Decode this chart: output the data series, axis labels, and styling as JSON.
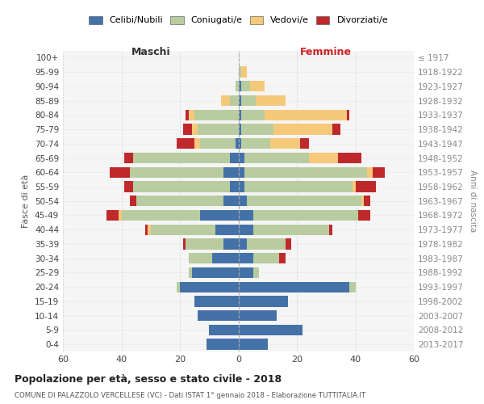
{
  "age_groups": [
    "100+",
    "95-99",
    "90-94",
    "85-89",
    "80-84",
    "75-79",
    "70-74",
    "65-69",
    "60-64",
    "55-59",
    "50-54",
    "45-49",
    "40-44",
    "35-39",
    "30-34",
    "25-29",
    "20-24",
    "15-19",
    "10-14",
    "5-9",
    "0-4"
  ],
  "birth_years": [
    "≤ 1917",
    "1918-1922",
    "1923-1927",
    "1928-1932",
    "1933-1937",
    "1938-1942",
    "1943-1947",
    "1948-1952",
    "1953-1957",
    "1958-1962",
    "1963-1967",
    "1968-1972",
    "1973-1977",
    "1978-1982",
    "1983-1987",
    "1988-1992",
    "1993-1997",
    "1998-2002",
    "2003-2007",
    "2008-2012",
    "2013-2017"
  ],
  "males": {
    "celibi": [
      0,
      0,
      0,
      0,
      0,
      0,
      1,
      3,
      5,
      3,
      5,
      13,
      8,
      5,
      9,
      16,
      20,
      15,
      14,
      10,
      11
    ],
    "coniugati": [
      0,
      0,
      1,
      3,
      15,
      14,
      12,
      33,
      32,
      33,
      30,
      27,
      22,
      13,
      8,
      1,
      1,
      0,
      0,
      0,
      0
    ],
    "vedovi": [
      0,
      0,
      0,
      3,
      2,
      2,
      2,
      0,
      0,
      0,
      0,
      1,
      1,
      0,
      0,
      0,
      0,
      0,
      0,
      0,
      0
    ],
    "divorziati": [
      0,
      0,
      0,
      0,
      1,
      3,
      6,
      3,
      7,
      3,
      2,
      4,
      1,
      1,
      0,
      0,
      0,
      0,
      0,
      0,
      0
    ]
  },
  "females": {
    "nubili": [
      0,
      0,
      1,
      1,
      1,
      1,
      1,
      2,
      2,
      2,
      3,
      5,
      5,
      3,
      5,
      5,
      38,
      17,
      13,
      22,
      10
    ],
    "coniugate": [
      0,
      1,
      3,
      5,
      8,
      11,
      10,
      22,
      42,
      37,
      39,
      36,
      26,
      13,
      9,
      2,
      2,
      0,
      0,
      0,
      0
    ],
    "vedove": [
      0,
      2,
      5,
      10,
      28,
      20,
      10,
      10,
      2,
      1,
      1,
      0,
      0,
      0,
      0,
      0,
      0,
      0,
      0,
      0,
      0
    ],
    "divorziate": [
      0,
      0,
      0,
      0,
      1,
      3,
      3,
      8,
      4,
      7,
      2,
      4,
      1,
      2,
      2,
      0,
      0,
      0,
      0,
      0,
      0
    ]
  },
  "colors": {
    "celibi_nubili": "#4472a8",
    "coniugati": "#b8cca0",
    "vedovi": "#f5c97a",
    "divorziati": "#c0292b"
  },
  "xlim": 60,
  "title": "Popolazione per età, sesso e stato civile - 2018",
  "subtitle": "COMUNE DI PALAZZOLO VERCELLESE (VC) - Dati ISTAT 1° gennaio 2018 - Elaborazione TUTTITALIA.IT",
  "xlabel_left": "Maschi",
  "xlabel_right": "Femmine",
  "ylabel_left": "Fasce di età",
  "ylabel_right": "Anni di nascita",
  "bg_color": "#ffffff",
  "plot_bg": "#f5f5f5",
  "grid_color": "#cccccc"
}
